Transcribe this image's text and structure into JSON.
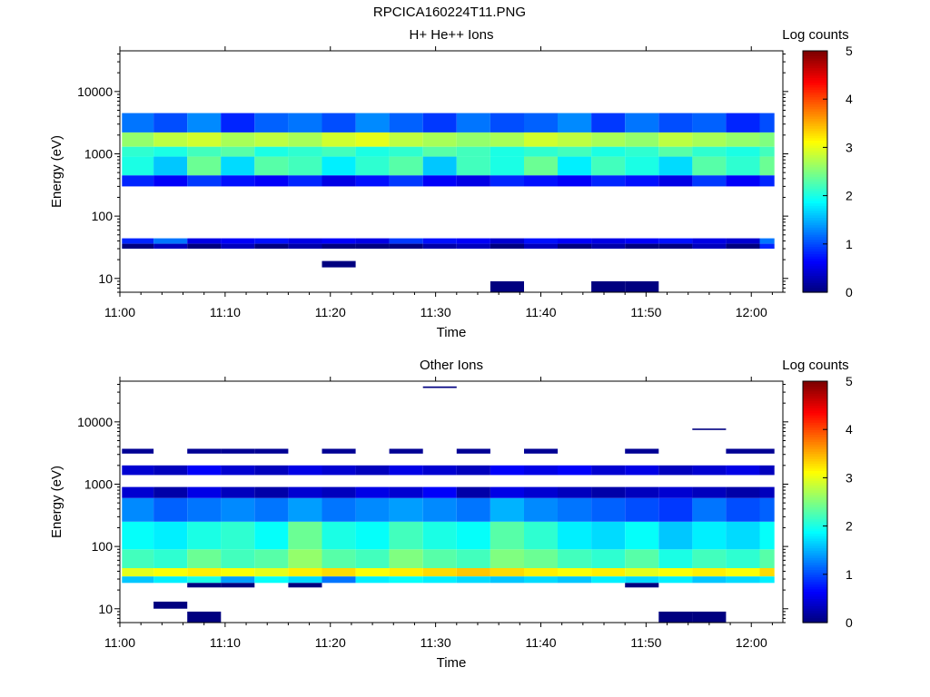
{
  "figure_title": "RPCICA160224T11.PNG",
  "chart_data": [
    {
      "type": "heatmap",
      "title": "H+ He++ Ions",
      "xlabel": "Time",
      "ylabel": "Energy (eV)",
      "x_ticks": [
        "11:00",
        "11:10",
        "11:20",
        "11:30",
        "11:40",
        "11:50",
        "12:00"
      ],
      "x_range_minutes": [
        0,
        63
      ],
      "y_scale": "log",
      "y_range": [
        6,
        45000
      ],
      "y_ticks": [
        10,
        100,
        1000,
        10000
      ],
      "y_tick_labels": [
        "10",
        "100",
        "1000",
        "10000"
      ],
      "colorbar": {
        "label": "Log counts",
        "range": [
          0,
          5
        ],
        "ticks": [
          "0",
          "1",
          "2",
          "3",
          "4",
          "5"
        ]
      },
      "time_bins_minutes": [
        0.2,
        3.2,
        6.4,
        9.6,
        12.8,
        16.0,
        19.2,
        22.4,
        25.6,
        28.8,
        32.0,
        35.2,
        38.4,
        41.6,
        44.8,
        48.0,
        51.2,
        54.4,
        57.6,
        60.8,
        62.2
      ],
      "bands": [
        {
          "e_min": 1300,
          "e_max": 2200,
          "log_counts": [
            2.6,
            2.8,
            2.9,
            2.7,
            2.8,
            2.7,
            2.9,
            3.0,
            2.8,
            2.7,
            2.6,
            2.7,
            2.9,
            2.8,
            2.7,
            2.6,
            2.8,
            2.7,
            2.6,
            2.5
          ]
        },
        {
          "e_min": 900,
          "e_max": 1300,
          "log_counts": [
            2.1,
            2.0,
            2.2,
            2.3,
            2.0,
            2.1,
            2.2,
            2.0,
            2.1,
            2.3,
            2.2,
            2.0,
            2.1,
            2.2,
            2.0,
            2.1,
            2.3,
            2.1,
            2.0,
            2.2
          ]
        },
        {
          "e_min": 450,
          "e_max": 900,
          "log_counts": [
            2.0,
            1.6,
            2.4,
            1.7,
            2.3,
            2.2,
            1.8,
            2.1,
            2.3,
            1.6,
            2.2,
            2.0,
            2.4,
            1.8,
            2.2,
            2.0,
            1.7,
            2.3,
            2.1,
            2.4
          ]
        },
        {
          "e_min": 2200,
          "e_max": 4500,
          "log_counts": [
            1.2,
            1.0,
            1.3,
            0.8,
            1.1,
            1.2,
            1.0,
            1.3,
            1.1,
            0.9,
            1.2,
            1.0,
            1.1,
            1.3,
            0.9,
            1.2,
            1.0,
            1.1,
            0.8,
            1.0
          ]
        },
        {
          "e_min": 300,
          "e_max": 450,
          "log_counts": [
            0.8,
            0.6,
            0.9,
            0.7,
            0.6,
            0.8,
            0.5,
            0.7,
            0.9,
            0.6,
            0.5,
            0.8,
            0.7,
            0.6,
            0.8,
            0.7,
            0.5,
            0.9,
            0.6,
            0.8
          ]
        },
        {
          "e_min": 36,
          "e_max": 44,
          "log_counts": [
            0.8,
            1.2,
            0.5,
            0.6,
            0.7,
            0.5,
            0.6,
            0.5,
            0.9,
            0.7,
            0.6,
            0.4,
            0.7,
            0.6,
            0.5,
            0.6,
            0.7,
            0.5,
            0.4,
            1.2
          ]
        },
        {
          "e_min": 30,
          "e_max": 36,
          "log_counts": [
            0,
            0.3,
            0,
            0.3,
            0,
            0.2,
            0,
            0,
            0,
            0.2,
            0.3,
            0,
            0.3,
            0,
            0.2,
            0,
            0,
            0.3,
            0,
            0.8
          ]
        },
        {
          "e_min": 6,
          "e_max": 9,
          "log_counts": [
            null,
            null,
            null,
            null,
            null,
            null,
            null,
            null,
            null,
            null,
            null,
            0,
            null,
            null,
            0,
            0,
            null,
            null,
            null,
            null
          ]
        },
        {
          "e_min": 15,
          "e_max": 19,
          "log_counts": [
            null,
            null,
            null,
            null,
            null,
            null,
            0,
            null,
            null,
            null,
            null,
            null,
            null,
            null,
            null,
            null,
            null,
            null,
            null,
            null
          ]
        }
      ]
    },
    {
      "type": "heatmap",
      "title": "Other Ions",
      "xlabel": "Time",
      "ylabel": "Energy (eV)",
      "x_ticks": [
        "11:00",
        "11:10",
        "11:20",
        "11:30",
        "11:40",
        "11:50",
        "12:00"
      ],
      "x_range_minutes": [
        0,
        63
      ],
      "y_scale": "log",
      "y_range": [
        6,
        45000
      ],
      "y_ticks": [
        10,
        100,
        1000,
        10000
      ],
      "y_tick_labels": [
        "10",
        "100",
        "1000",
        "10000"
      ],
      "colorbar": {
        "label": "Log counts",
        "range": [
          0,
          5
        ],
        "ticks": [
          "0",
          "1",
          "2",
          "3",
          "4",
          "5"
        ]
      },
      "time_bins_minutes": [
        0.2,
        3.2,
        6.4,
        9.6,
        12.8,
        16.0,
        19.2,
        22.4,
        25.6,
        28.8,
        32.0,
        35.2,
        38.4,
        41.6,
        44.8,
        48.0,
        51.2,
        54.4,
        57.6,
        60.8,
        62.2
      ],
      "bands": [
        {
          "e_min": 33,
          "e_max": 45,
          "log_counts": [
            3.0,
            3.1,
            3.2,
            3.1,
            3.0,
            3.2,
            3.3,
            3.1,
            3.2,
            3.3,
            3.4,
            3.3,
            3.2,
            3.1,
            3.2,
            3.0,
            3.1,
            3.2,
            3.1,
            3.3
          ]
        },
        {
          "e_min": 45,
          "e_max": 90,
          "log_counts": [
            2.2,
            2.1,
            2.4,
            2.2,
            2.3,
            2.6,
            2.3,
            2.2,
            2.5,
            2.3,
            2.2,
            2.5,
            2.4,
            2.2,
            2.1,
            2.3,
            2.0,
            2.2,
            2.1,
            2.3
          ]
        },
        {
          "e_min": 90,
          "e_max": 250,
          "log_counts": [
            1.9,
            1.8,
            2.0,
            2.1,
            1.9,
            2.4,
            2.0,
            1.9,
            2.2,
            2.0,
            1.9,
            2.3,
            2.1,
            1.8,
            1.7,
            1.9,
            1.6,
            1.8,
            1.7,
            1.9
          ]
        },
        {
          "e_min": 250,
          "e_max": 600,
          "log_counts": [
            1.3,
            1.1,
            1.2,
            1.3,
            1.2,
            1.4,
            1.2,
            1.3,
            1.4,
            1.3,
            1.2,
            1.5,
            1.3,
            1.2,
            1.1,
            1.0,
            0.9,
            1.2,
            1.0,
            1.1
          ]
        },
        {
          "e_min": 26,
          "e_max": 33,
          "log_counts": [
            1.6,
            1.8,
            2.0,
            1.4,
            1.9,
            1.7,
            1.2,
            1.8,
            1.9,
            1.8,
            1.7,
            1.6,
            1.7,
            1.6,
            1.8,
            1.7,
            1.8,
            1.6,
            1.7,
            1.8
          ]
        },
        {
          "e_min": 600,
          "e_max": 900,
          "log_counts": [
            0.4,
            0.2,
            0.5,
            0.3,
            0.2,
            0.4,
            0.3,
            0.5,
            0.4,
            0.6,
            0.2,
            0.5,
            0.4,
            0.3,
            0.2,
            0.3,
            0.4,
            0.3,
            0.2,
            0.3
          ]
        },
        {
          "e_min": 1400,
          "e_max": 2000,
          "log_counts": [
            0.4,
            0.3,
            0.6,
            0.4,
            0.3,
            0.5,
            0.4,
            0.3,
            0.5,
            0.4,
            0.3,
            0.6,
            0.5,
            0.6,
            0.4,
            0.5,
            0.3,
            0.4,
            0.5,
            0.3
          ]
        },
        {
          "e_min": 3100,
          "e_max": 3700,
          "log_counts": [
            0.1,
            null,
            0.1,
            0.1,
            0.1,
            null,
            0.1,
            null,
            0.1,
            null,
            0.1,
            null,
            0.1,
            null,
            null,
            0.1,
            null,
            null,
            0.1,
            0.1
          ]
        },
        {
          "e_min": 22,
          "e_max": 26,
          "log_counts": [
            null,
            null,
            0,
            0,
            null,
            0,
            null,
            null,
            null,
            null,
            null,
            null,
            null,
            null,
            null,
            0,
            null,
            null,
            null,
            null
          ]
        },
        {
          "e_min": 10,
          "e_max": 13,
          "log_counts": [
            null,
            0,
            null,
            null,
            null,
            null,
            null,
            null,
            null,
            null,
            null,
            null,
            null,
            null,
            null,
            null,
            null,
            null,
            null,
            null
          ]
        },
        {
          "e_min": 6,
          "e_max": 9,
          "log_counts": [
            null,
            null,
            0,
            null,
            null,
            null,
            null,
            null,
            null,
            null,
            null,
            null,
            null,
            null,
            null,
            null,
            0,
            0,
            null,
            null
          ]
        },
        {
          "e_min": 35000,
          "e_max": 37000,
          "log_counts": [
            null,
            null,
            null,
            null,
            null,
            null,
            null,
            null,
            null,
            0,
            null,
            null,
            null,
            null,
            null,
            null,
            null,
            null,
            null,
            null
          ]
        },
        {
          "e_min": 7400,
          "e_max": 7800,
          "log_counts": [
            null,
            null,
            null,
            null,
            null,
            null,
            null,
            null,
            null,
            null,
            null,
            null,
            null,
            null,
            null,
            null,
            null,
            0,
            null,
            null
          ]
        }
      ]
    }
  ]
}
